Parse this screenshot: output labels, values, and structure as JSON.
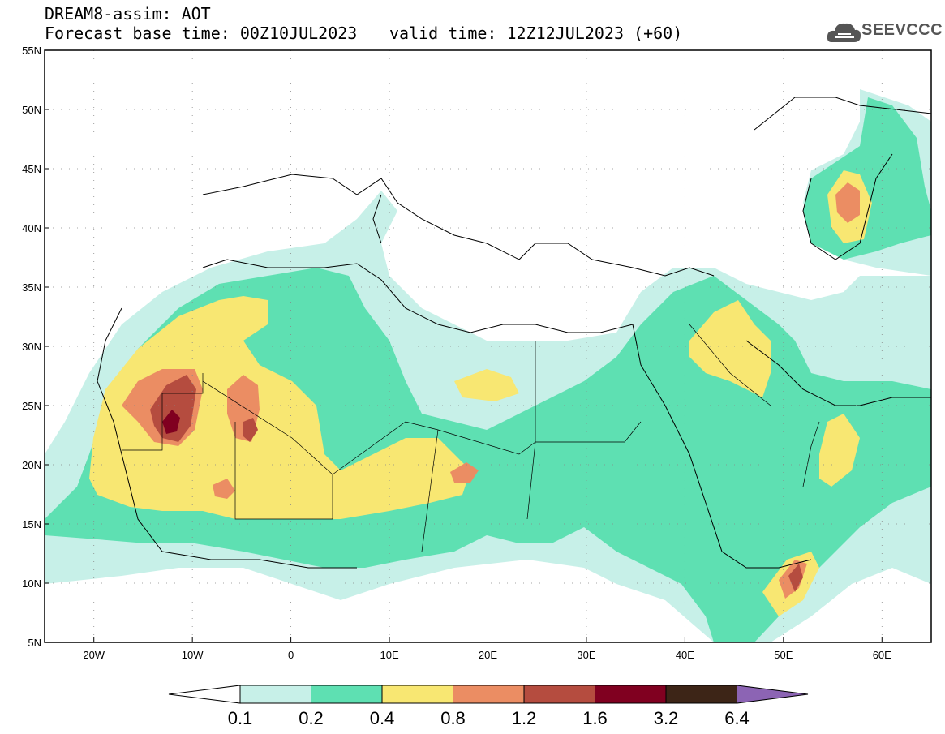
{
  "title": {
    "line1": "DREAM8-assim: AOT",
    "line2": "Forecast base time: 00Z10JUL2023",
    "valid": "valid time: 12Z12JUL2023 (+60)"
  },
  "logo": {
    "text": "SEEVCCC",
    "icon": "cloud-icon"
  },
  "map": {
    "lon_range": [
      -25,
      65
    ],
    "lat_range": [
      5,
      55
    ],
    "lon_ticks": [
      {
        "value": -20,
        "label": "20W"
      },
      {
        "value": -10,
        "label": "10W"
      },
      {
        "value": 0,
        "label": "0"
      },
      {
        "value": 10,
        "label": "10E"
      },
      {
        "value": 20,
        "label": "20E"
      },
      {
        "value": 30,
        "label": "30E"
      },
      {
        "value": 40,
        "label": "40E"
      },
      {
        "value": 50,
        "label": "50E"
      },
      {
        "value": 60,
        "label": "60E"
      }
    ],
    "lat_ticks": [
      {
        "value": 55,
        "label": "55N"
      },
      {
        "value": 50,
        "label": "50N"
      },
      {
        "value": 45,
        "label": "45N"
      },
      {
        "value": 40,
        "label": "40N"
      },
      {
        "value": 35,
        "label": "35N"
      },
      {
        "value": 30,
        "label": "30N"
      },
      {
        "value": 25,
        "label": "25N"
      },
      {
        "value": 20,
        "label": "20N"
      },
      {
        "value": 15,
        "label": "15N"
      },
      {
        "value": 10,
        "label": "10N"
      },
      {
        "value": 5,
        "label": "5N"
      }
    ]
  },
  "colorbar": {
    "colors": [
      "#c7f0e8",
      "#5ee0b2",
      "#f8e772",
      "#eb8d63",
      "#b54c3f",
      "#800020",
      "#3d2517"
    ],
    "low_color": "#ffffff",
    "high_color": "#8c64b4",
    "labels": [
      "0.1",
      "0.2",
      "0.4",
      "0.8",
      "1.2",
      "1.6",
      "3.2",
      "6.4"
    ]
  }
}
